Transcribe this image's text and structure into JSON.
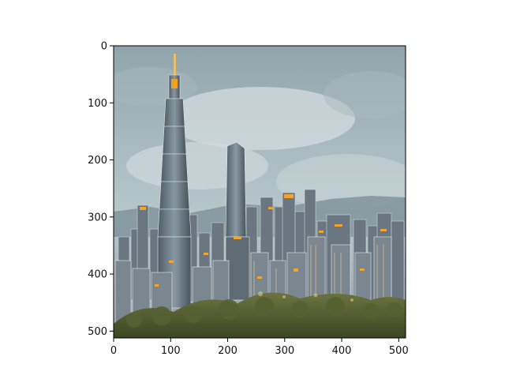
{
  "image": {
    "description_icon": "city-skyline-painting",
    "x_ticks": [
      "0",
      "100",
      "200",
      "300",
      "400",
      "500"
    ],
    "y_ticks": [
      "0",
      "100",
      "200",
      "300",
      "400",
      "500"
    ],
    "x_tick_values": [
      0,
      100,
      200,
      300,
      400,
      500
    ],
    "y_tick_values": [
      0,
      100,
      200,
      300,
      400,
      500
    ],
    "xlim": [
      0,
      512
    ],
    "ylim": [
      512,
      0
    ],
    "colors": {
      "sky_top": "#8fa3aa",
      "sky_mid": "#b7c7cc",
      "cloud": "#d8e2e4",
      "tower": "#5f6f7a",
      "lights": "#f0a020",
      "trees": "#4e5a2a"
    }
  }
}
